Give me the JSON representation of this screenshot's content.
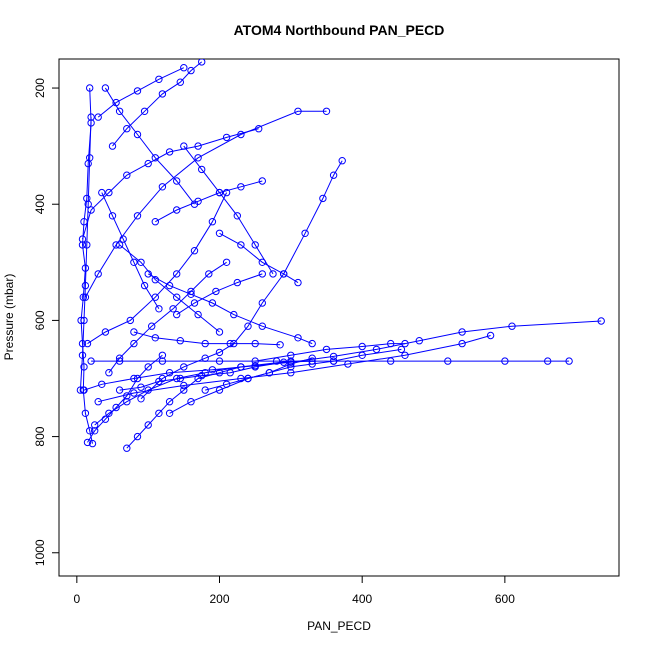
{
  "chart_data": {
    "type": "line",
    "title": "ATOM4 Northbound PAN_PECD",
    "xlabel": "PAN_PECD",
    "ylabel": "Pressure (mbar)",
    "xlim": [
      -25,
      760
    ],
    "ylim": [
      1040,
      150
    ],
    "y_reversed": true,
    "x_ticks": [
      0,
      200,
      400,
      600
    ],
    "y_ticks": [
      200,
      400,
      600,
      800,
      1000
    ],
    "grid": false,
    "legend": "none",
    "series_style": {
      "color": "#0000ff",
      "marker": "open-circle",
      "line": true
    },
    "series": [
      {
        "x": [
          22,
          18,
          12,
          9,
          10,
          8,
          6,
          9,
          12,
          8,
          10,
          14,
          16,
          20,
          18
        ],
        "y": [
          812,
          790,
          760,
          720,
          680,
          640,
          600,
          560,
          510,
          470,
          430,
          390,
          330,
          260,
          200
        ]
      },
      {
        "x": [
          90,
          120,
          150,
          180,
          200,
          220,
          240,
          260,
          290,
          320,
          345,
          360,
          372
        ],
        "y": [
          735,
          700,
          680,
          665,
          655,
          640,
          610,
          570,
          520,
          450,
          390,
          350,
          325
        ]
      },
      {
        "x": [
          10,
          35,
          80,
          130,
          190,
          250,
          300,
          360,
          420,
          480,
          540,
          610,
          735
        ],
        "y": [
          720,
          710,
          700,
          690,
          685,
          678,
          672,
          662,
          650,
          635,
          620,
          610,
          601
        ]
      },
      {
        "x": [
          20,
          60,
          120,
          200,
          280,
          360,
          440,
          520,
          600,
          660,
          690
        ],
        "y": [
          670,
          670,
          670,
          670,
          670,
          670,
          670,
          670,
          670,
          670,
          670
        ]
      },
      {
        "x": [
          30,
          80,
          150,
          230,
          300,
          380,
          460,
          540,
          580
        ],
        "y": [
          740,
          725,
          712,
          700,
          690,
          675,
          660,
          640,
          626
        ]
      },
      {
        "x": [
          15,
          40,
          75,
          110,
          140,
          165,
          190,
          210
        ],
        "y": [
          640,
          620,
          600,
          560,
          520,
          480,
          430,
          380
        ]
      },
      {
        "x": [
          12,
          30,
          55,
          85,
          120,
          170,
          230,
          310,
          350
        ],
        "y": [
          560,
          520,
          470,
          420,
          370,
          320,
          280,
          240,
          240
        ]
      },
      {
        "x": [
          8,
          20,
          45,
          70,
          100,
          130,
          170,
          210,
          255
        ],
        "y": [
          460,
          410,
          380,
          350,
          330,
          310,
          300,
          285,
          270
        ]
      },
      {
        "x": [
          25,
          45,
          70,
          100,
          140,
          180,
          230,
          300
        ],
        "y": [
          780,
          760,
          740,
          720,
          700,
          690,
          680,
          670
        ]
      },
      {
        "x": [
          60,
          90,
          110,
          140,
          170,
          200
        ],
        "y": [
          470,
          500,
          530,
          560,
          590,
          620
        ]
      },
      {
        "x": [
          50,
          70,
          95,
          120,
          145,
          160,
          175
        ],
        "y": [
          300,
          270,
          240,
          210,
          190,
          170,
          155
        ]
      },
      {
        "x": [
          100,
          130,
          160,
          190,
          220,
          260,
          310,
          330
        ],
        "y": [
          520,
          540,
          555,
          570,
          590,
          610,
          630,
          640
        ]
      },
      {
        "x": [
          15,
          25,
          40,
          55,
          70,
          85,
          100,
          120
        ],
        "y": [
          810,
          790,
          770,
          750,
          730,
          700,
          680,
          660
        ]
      },
      {
        "x": [
          130,
          160,
          200,
          240,
          270,
          300,
          330
        ],
        "y": [
          760,
          740,
          720,
          700,
          690,
          675,
          665
        ]
      },
      {
        "x": [
          5,
          8,
          10,
          12,
          14,
          16,
          18,
          20
        ],
        "y": [
          720,
          660,
          600,
          540,
          470,
          400,
          320,
          250
        ]
      },
      {
        "x": [
          70,
          85,
          100,
          115,
          130,
          150,
          170,
          200,
          230
        ],
        "y": [
          820,
          800,
          780,
          760,
          740,
          720,
          700,
          690,
          680
        ]
      },
      {
        "x": [
          200,
          230,
          260,
          290,
          310
        ],
        "y": [
          450,
          470,
          500,
          520,
          535
        ]
      },
      {
        "x": [
          150,
          175,
          200,
          225,
          250,
          275
        ],
        "y": [
          300,
          340,
          380,
          420,
          470,
          520
        ]
      },
      {
        "x": [
          40,
          60,
          85,
          110,
          140,
          165
        ],
        "y": [
          200,
          240,
          280,
          320,
          360,
          400
        ]
      },
      {
        "x": [
          80,
          110,
          145,
          180,
          215,
          250,
          285
        ],
        "y": [
          620,
          630,
          635,
          640,
          640,
          640,
          642
        ]
      },
      {
        "x": [
          250,
          300,
          350,
          400,
          440,
          460
        ],
        "y": [
          670,
          660,
          650,
          645,
          640,
          640
        ]
      },
      {
        "x": [
          45,
          60,
          80,
          105,
          135,
          160,
          185,
          210
        ],
        "y": [
          690,
          665,
          640,
          610,
          580,
          550,
          520,
          500
        ]
      },
      {
        "x": [
          110,
          140,
          170,
          200,
          230,
          260
        ],
        "y": [
          430,
          410,
          395,
          380,
          370,
          360
        ]
      },
      {
        "x": [
          30,
          55,
          85,
          115,
          150
        ],
        "y": [
          250,
          225,
          205,
          185,
          165
        ]
      },
      {
        "x": [
          180,
          210,
          240,
          270,
          300,
          330,
          360,
          400,
          455
        ],
        "y": [
          720,
          710,
          700,
          690,
          680,
          675,
          670,
          660,
          650
        ]
      },
      {
        "x": [
          60,
          90,
          115,
          145,
          175,
          215,
          250,
          290,
          330
        ],
        "y": [
          720,
          715,
          705,
          700,
          695,
          690,
          680,
          672,
          670
        ]
      },
      {
        "x": [
          35,
          50,
          65,
          80,
          95,
          115
        ],
        "y": [
          380,
          420,
          460,
          500,
          540,
          580
        ]
      },
      {
        "x": [
          140,
          165,
          195,
          225,
          260
        ],
        "y": [
          590,
          570,
          550,
          535,
          520
        ]
      }
    ]
  }
}
